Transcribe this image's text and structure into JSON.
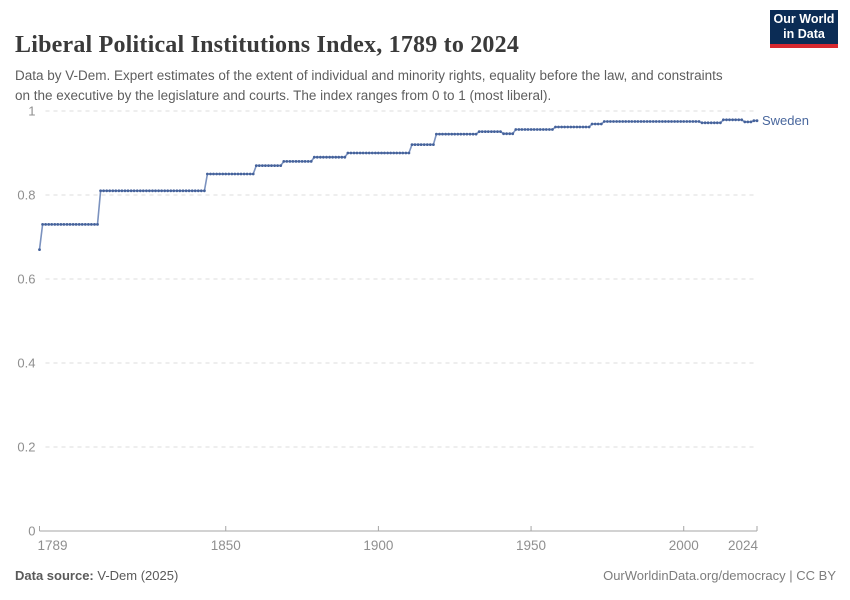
{
  "header": {
    "title": "Liberal Political Institutions Index, 1789 to 2024",
    "subtitle": "Data by V-Dem. Expert estimates of the extent of individual and minority rights, equality before the law, and constraints on the executive by the legislature and courts. The index ranges from 0 to 1 (most liberal)."
  },
  "logo": {
    "line1": "Our World",
    "line2": "in Data",
    "background": "#0b2c55",
    "accent": "#d7282f"
  },
  "chart_data": {
    "type": "line",
    "title": "Liberal Political Institutions Index, 1789 to 2024",
    "xlabel": "",
    "ylabel": "",
    "xlim": [
      1789,
      2024
    ],
    "ylim": [
      0,
      1
    ],
    "grid": "horizontal-dashed",
    "legend_position": "end-of-line",
    "xticks": [
      {
        "value": 1789,
        "label": "1789",
        "align": "start"
      },
      {
        "value": 1850,
        "label": "1850",
        "align": "middle"
      },
      {
        "value": 1900,
        "label": "1900",
        "align": "middle"
      },
      {
        "value": 1950,
        "label": "1950",
        "align": "middle"
      },
      {
        "value": 2000,
        "label": "2000",
        "align": "middle"
      },
      {
        "value": 2024,
        "label": "2024",
        "align": "end"
      }
    ],
    "yticks": [
      {
        "value": 0,
        "label": "0"
      },
      {
        "value": 0.2,
        "label": "0.2"
      },
      {
        "value": 0.4,
        "label": "0.4"
      },
      {
        "value": 0.6,
        "label": "0.6"
      },
      {
        "value": 0.8,
        "label": "0.8"
      },
      {
        "value": 1,
        "label": "1"
      }
    ],
    "series": [
      {
        "name": "Sweden",
        "line_color": "#7b92bf",
        "marker_color": "#45629b",
        "label_color": "#49679d",
        "steps": [
          {
            "from": 1789,
            "to": 1789,
            "value": 0.67
          },
          {
            "from": 1790,
            "to": 1808,
            "value": 0.73
          },
          {
            "from": 1809,
            "to": 1843,
            "value": 0.81
          },
          {
            "from": 1844,
            "to": 1859,
            "value": 0.85
          },
          {
            "from": 1860,
            "to": 1868,
            "value": 0.87
          },
          {
            "from": 1869,
            "to": 1878,
            "value": 0.88
          },
          {
            "from": 1879,
            "to": 1889,
            "value": 0.89
          },
          {
            "from": 1890,
            "to": 1910,
            "value": 0.9
          },
          {
            "from": 1911,
            "to": 1918,
            "value": 0.92
          },
          {
            "from": 1919,
            "to": 1932,
            "value": 0.945
          },
          {
            "from": 1933,
            "to": 1940,
            "value": 0.951
          },
          {
            "from": 1941,
            "to": 1944,
            "value": 0.946
          },
          {
            "from": 1945,
            "to": 1957,
            "value": 0.956
          },
          {
            "from": 1958,
            "to": 1969,
            "value": 0.962
          },
          {
            "from": 1970,
            "to": 1973,
            "value": 0.969
          },
          {
            "from": 1974,
            "to": 2005,
            "value": 0.975
          },
          {
            "from": 2006,
            "to": 2012,
            "value": 0.972
          },
          {
            "from": 2013,
            "to": 2019,
            "value": 0.979
          },
          {
            "from": 2020,
            "to": 2022,
            "value": 0.974
          },
          {
            "from": 2023,
            "to": 2024,
            "value": 0.977
          }
        ]
      }
    ],
    "colors": {
      "gridline": "#dcdcdc",
      "axis": "#a5a5a5",
      "tick_label": "#8f8f8f"
    }
  },
  "footer": {
    "source_label": "Data source:",
    "source_value": " V-Dem (2025)",
    "link": "OurWorldinData.org/democracy",
    "divider": " | ",
    "license": "CC BY"
  }
}
